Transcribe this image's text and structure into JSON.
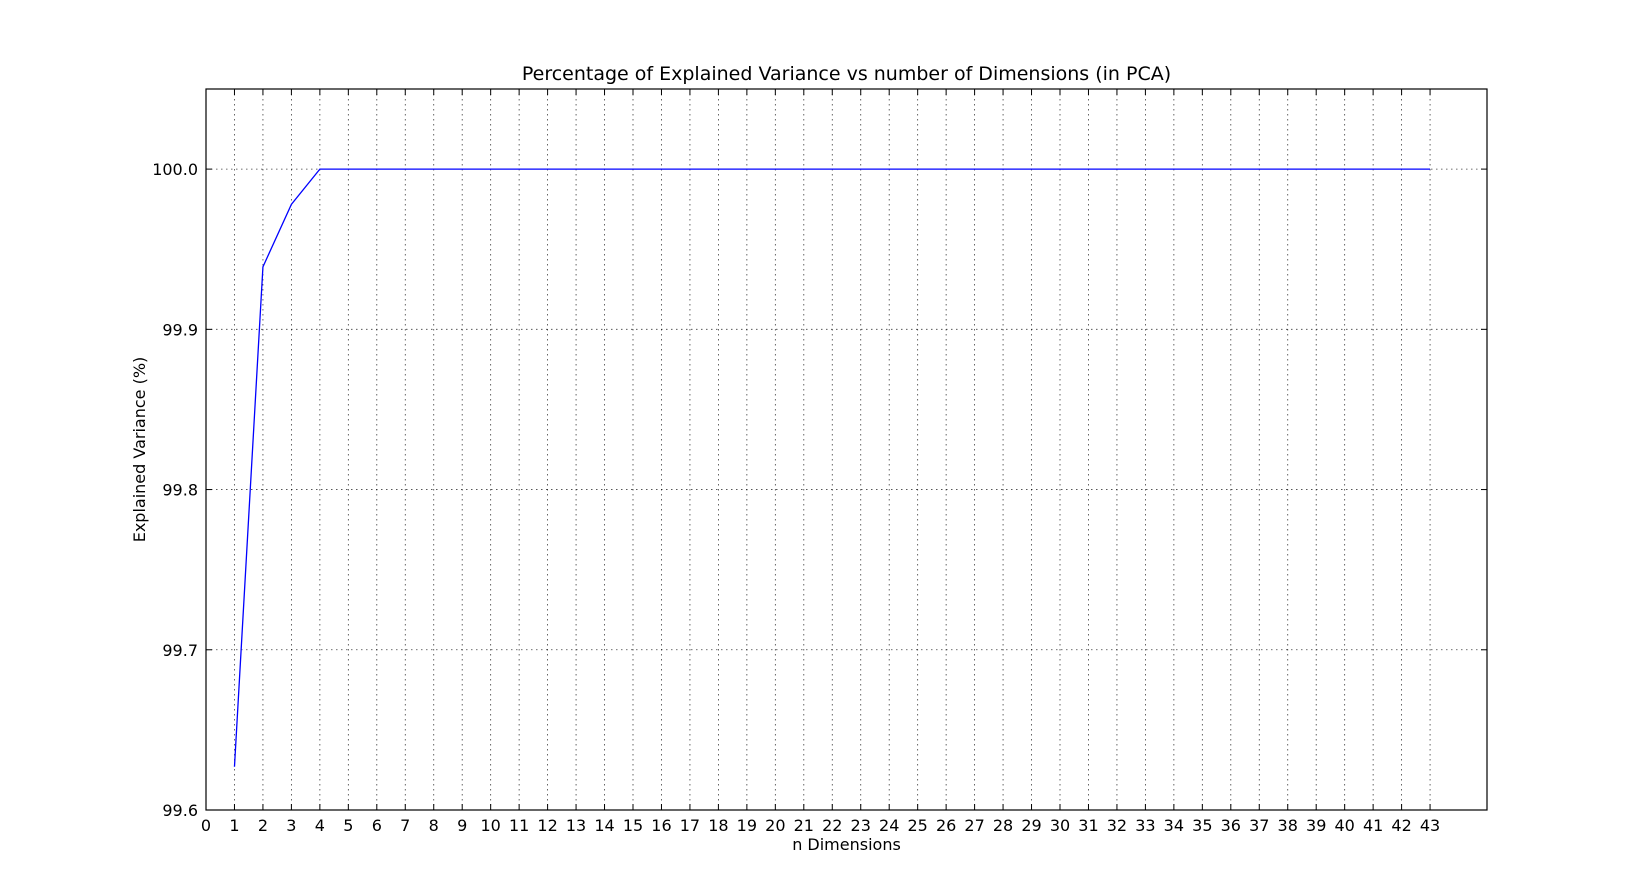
{
  "chart_data": {
    "type": "line",
    "title": "Percentage of Explained Variance vs number of Dimensions (in PCA)",
    "xlabel": "n Dimensions",
    "ylabel": "Explained Variance (%)",
    "xlim": [
      0,
      45
    ],
    "ylim": [
      99.6,
      100.05
    ],
    "grid": true,
    "legend": "none",
    "x_ticks": [
      0,
      1,
      2,
      3,
      4,
      5,
      6,
      7,
      8,
      9,
      10,
      11,
      12,
      13,
      14,
      15,
      16,
      17,
      18,
      19,
      20,
      21,
      22,
      23,
      24,
      25,
      26,
      27,
      28,
      29,
      30,
      31,
      32,
      33,
      34,
      35,
      36,
      37,
      38,
      39,
      40,
      41,
      42,
      43
    ],
    "x_tick_labels": [
      "0",
      "1",
      "2",
      "3",
      "4",
      "5",
      "6",
      "7",
      "8",
      "9",
      "10",
      "11",
      "12",
      "13",
      "14",
      "15",
      "16",
      "17",
      "18",
      "19",
      "20",
      "21",
      "22",
      "23",
      "24",
      "25",
      "26",
      "27",
      "28",
      "29",
      "30",
      "31",
      "32",
      "33",
      "34",
      "35",
      "36",
      "37",
      "38",
      "39",
      "40",
      "41",
      "42",
      "43"
    ],
    "y_ticks": [
      99.6,
      99.7,
      99.8,
      99.9,
      100.0
    ],
    "y_tick_labels": [
      "99.6",
      "99.7",
      "99.8",
      "99.9",
      "100.0"
    ],
    "series": [
      {
        "color": "#0000ff",
        "x": [
          1,
          2,
          3,
          4,
          5,
          6,
          7,
          8,
          9,
          10,
          11,
          12,
          13,
          14,
          15,
          16,
          17,
          18,
          19,
          20,
          21,
          22,
          23,
          24,
          25,
          26,
          27,
          28,
          29,
          30,
          31,
          32,
          33,
          34,
          35,
          36,
          37,
          38,
          39,
          40,
          41,
          42,
          43
        ],
        "values": [
          99.627,
          99.939,
          99.978,
          100.0,
          100.0,
          100.0,
          100.0,
          100.0,
          100.0,
          100.0,
          100.0,
          100.0,
          100.0,
          100.0,
          100.0,
          100.0,
          100.0,
          100.0,
          100.0,
          100.0,
          100.0,
          100.0,
          100.0,
          100.0,
          100.0,
          100.0,
          100.0,
          100.0,
          100.0,
          100.0,
          100.0,
          100.0,
          100.0,
          100.0,
          100.0,
          100.0,
          100.0,
          100.0,
          100.0,
          100.0,
          100.0,
          100.0,
          100.0
        ]
      }
    ]
  }
}
